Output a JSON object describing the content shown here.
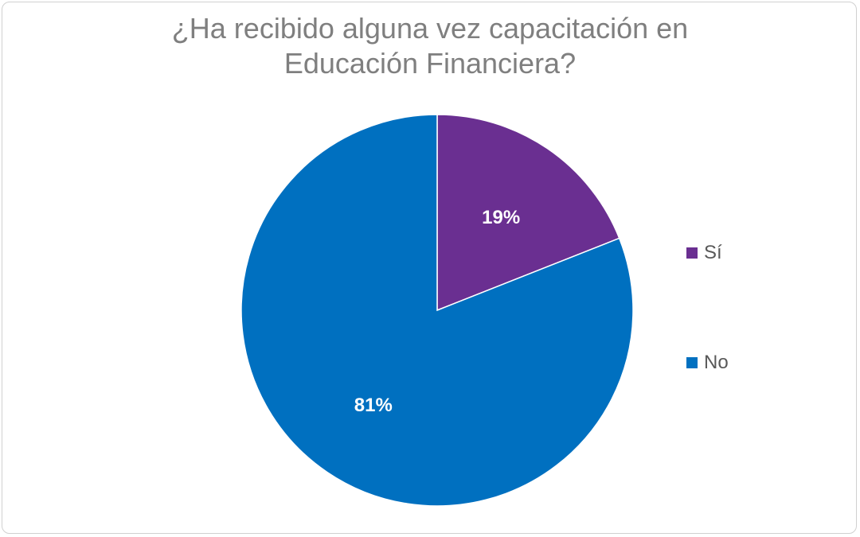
{
  "chart_data": {
    "type": "pie",
    "title_lines": [
      "¿Ha recibido alguna vez capacitación en",
      "Educación Financiera?"
    ],
    "categories": [
      "Sí",
      "No"
    ],
    "values": [
      19,
      81
    ],
    "data_labels": [
      "19%",
      "81%"
    ],
    "colors": [
      "#6a2f91",
      "#0070c0"
    ],
    "legend_position": "right",
    "label_color": "#ffffff",
    "start_angle_deg": 0,
    "direction": "clockwise"
  }
}
